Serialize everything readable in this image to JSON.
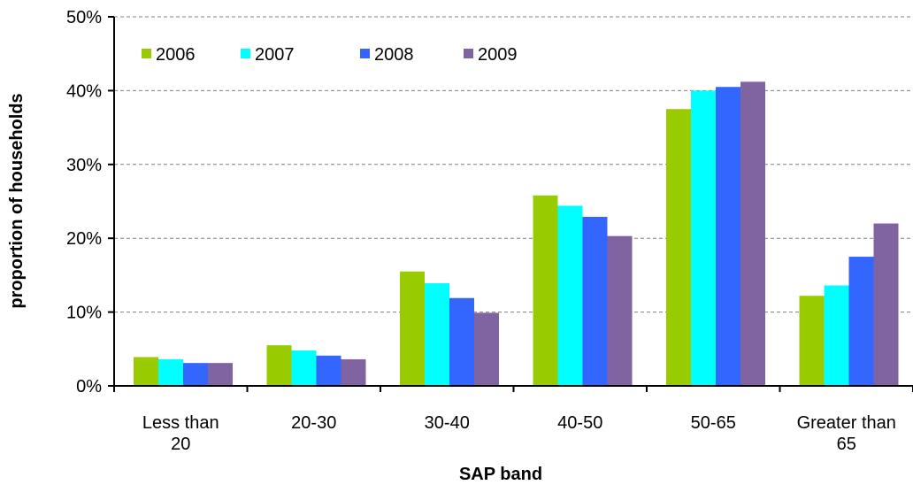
{
  "chart_data": {
    "type": "bar",
    "title": "",
    "xlabel": "SAP band",
    "ylabel": "proportion of households",
    "categories": [
      [
        "Less than",
        "20"
      ],
      [
        "20-30"
      ],
      [
        "30-40"
      ],
      [
        "40-50"
      ],
      [
        "50-65"
      ],
      [
        "Greater than",
        "65"
      ]
    ],
    "y_ticks": [
      "0%",
      "10%",
      "20%",
      "30%",
      "40%",
      "50%"
    ],
    "ylim": [
      0,
      50
    ],
    "grid": true,
    "legend_position": "top-left",
    "series": [
      {
        "name": "2006",
        "color": "#99cc00",
        "values": [
          3.9,
          5.5,
          15.5,
          25.8,
          37.5,
          12.2
        ]
      },
      {
        "name": "2007",
        "color": "#00ffff",
        "values": [
          3.6,
          4.8,
          13.9,
          24.4,
          40.0,
          13.6
        ]
      },
      {
        "name": "2008",
        "color": "#3366ff",
        "values": [
          3.1,
          4.1,
          11.9,
          22.9,
          40.5,
          17.5
        ]
      },
      {
        "name": "2009",
        "color": "#8064a2",
        "values": [
          3.1,
          3.6,
          9.9,
          20.3,
          41.2,
          22.0
        ]
      }
    ]
  }
}
